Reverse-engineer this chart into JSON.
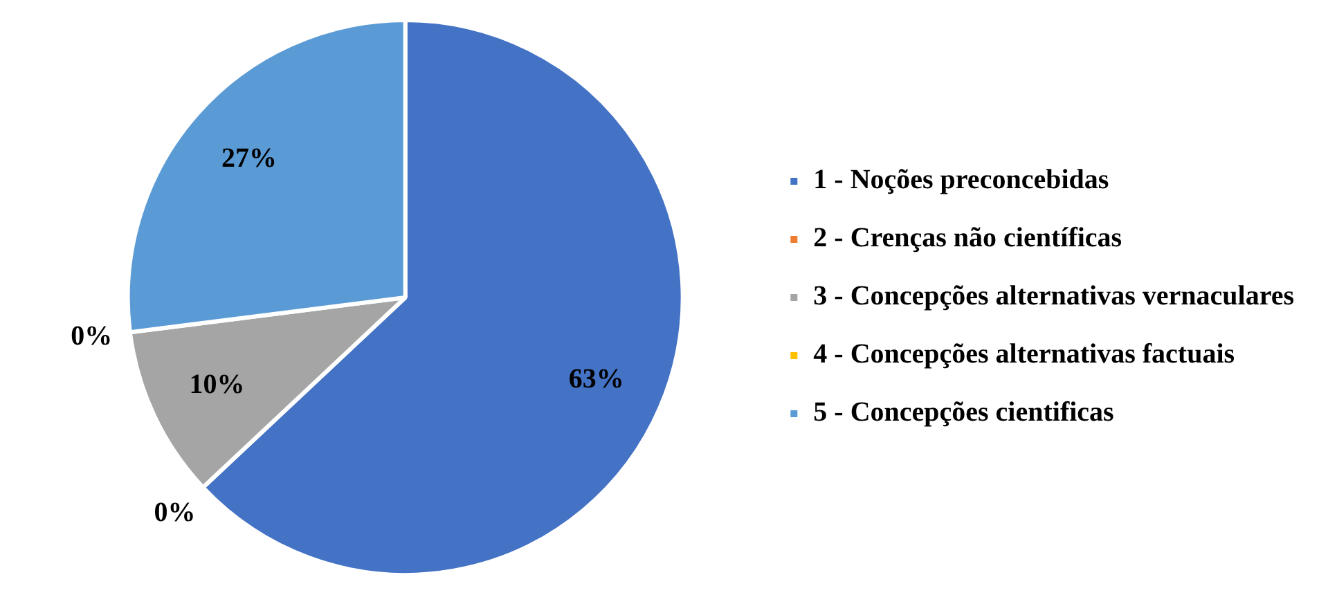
{
  "chart_data": {
    "type": "pie",
    "categories": [
      "1 - Noções preconcebidas",
      "2 - Crenças não científicas",
      "3 - Concepções alternativas vernaculares",
      "4 - Concepções alternativas factuais",
      "5 - Concepções cientificas"
    ],
    "values": [
      63,
      0,
      10,
      0,
      27
    ],
    "colors": [
      "#4472c4",
      "#ed7d31",
      "#a5a5a5",
      "#ffc000",
      "#5b9bd5"
    ],
    "value_labels": [
      "63%",
      "0%",
      "10%",
      "0%",
      "27%"
    ],
    "legend": "right"
  }
}
